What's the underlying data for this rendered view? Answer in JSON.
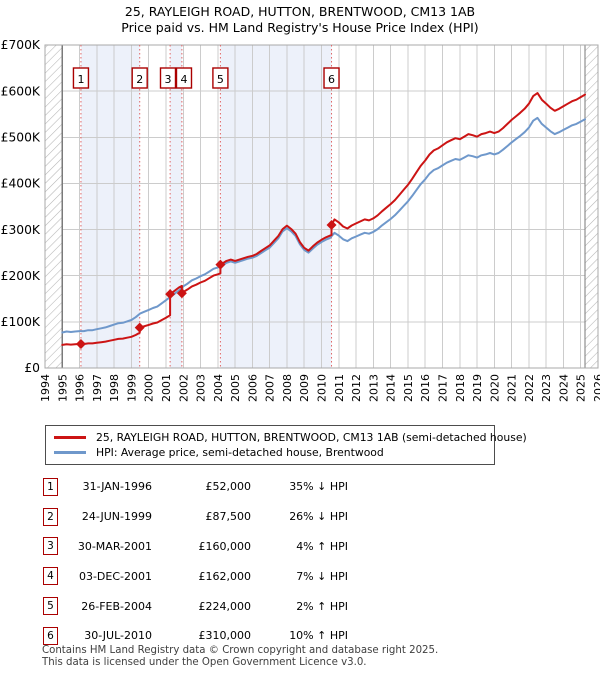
{
  "title": "25, RAYLEIGH ROAD, HUTTON, BRENTWOOD, CM13 1AB",
  "subtitle": "Price paid vs. HM Land Registry's House Price Index (HPI)",
  "legend": [
    {
      "label": "25, RAYLEIGH ROAD, HUTTON, BRENTWOOD, CM13 1AB (semi-detached house)",
      "color": "#cc1414"
    },
    {
      "label": "HPI: Average price, semi-detached house, Brentwood",
      "color": "#6f98cb"
    }
  ],
  "sales": [
    {
      "n": 1,
      "date": "31-JAN-1996",
      "price": "£52,000",
      "hpi_diff": "35% ↓ HPI",
      "year": 1996.08,
      "value_k": 52
    },
    {
      "n": 2,
      "date": "24-JUN-1999",
      "price": "£87,500",
      "hpi_diff": "26% ↓ HPI",
      "year": 1999.48,
      "value_k": 87.5
    },
    {
      "n": 3,
      "date": "30-MAR-2001",
      "price": "£160,000",
      "hpi_diff": "4% ↑ HPI",
      "year": 2001.24,
      "value_k": 160
    },
    {
      "n": 4,
      "date": "03-DEC-2001",
      "price": "£162,000",
      "hpi_diff": "7% ↓ HPI",
      "year": 2001.92,
      "value_k": 162
    },
    {
      "n": 5,
      "date": "26-FEB-2004",
      "price": "£224,000",
      "hpi_diff": "2% ↑ HPI",
      "year": 2004.15,
      "value_k": 224
    },
    {
      "n": 6,
      "date": "30-JUL-2010",
      "price": "£310,000",
      "hpi_diff": "10% ↑ HPI",
      "year": 2010.58,
      "value_k": 310
    }
  ],
  "footer": {
    "line1": "Contains HM Land Registry data © Crown copyright and database right 2025.",
    "line2": "This data is licensed under the Open Government Licence v3.0."
  },
  "colors": {
    "price_line": "#cc1414",
    "hpi_line": "#6f98cb",
    "sale_dash": "#e06666",
    "marker_box_border": "#aa0000",
    "grid": "#cccccc",
    "plot_border": "#a8a8a8",
    "hatch_line": "#b5b5b5",
    "hatch_edge": "#7a7a7a",
    "ownership_band": "#edf1fa"
  },
  "chart_data": {
    "type": "line",
    "title": "Price paid vs. HM Land Registry's House Price Index (HPI)",
    "xlabel": "",
    "ylabel": "",
    "units": "GBP thousands",
    "xlim_year": [
      1994,
      2026
    ],
    "ylim_k": [
      0,
      700
    ],
    "grid": true,
    "legend_position": "below",
    "x_tick_labels": [
      "1994",
      "1995",
      "1996",
      "1997",
      "1998",
      "1999",
      "2000",
      "2001",
      "2002",
      "2003",
      "2004",
      "2005",
      "2006",
      "2007",
      "2008",
      "2009",
      "2010",
      "2011",
      "2012",
      "2013",
      "2014",
      "2015",
      "2016",
      "2017",
      "2018",
      "2019",
      "2020",
      "2021",
      "2022",
      "2023",
      "2024",
      "2025",
      "2026"
    ],
    "y_ticks": [
      {
        "v": 0,
        "label": "£0"
      },
      {
        "v": 100,
        "label": "£100K"
      },
      {
        "v": 200,
        "label": "£200K"
      },
      {
        "v": 300,
        "label": "£300K"
      },
      {
        "v": 400,
        "label": "£400K"
      },
      {
        "v": 500,
        "label": "£500K"
      },
      {
        "v": 600,
        "label": "£600K"
      },
      {
        "v": 700,
        "label": "£700K"
      }
    ],
    "ownership_bands": [
      [
        1996.08,
        1999.48
      ],
      [
        2001.24,
        2001.92
      ],
      [
        2004.15,
        2010.58
      ]
    ],
    "hatched_no_data": [
      [
        1994,
        1995
      ],
      [
        2025.25,
        2026
      ]
    ],
    "series": [
      {
        "name": "HPI: Average price, semi-detached house, Brentwood",
        "color": "#6f98cb",
        "points": [
          [
            1995,
            77
          ],
          [
            1995.25,
            79
          ],
          [
            1995.5,
            78
          ],
          [
            1995.75,
            79
          ],
          [
            1996,
            80
          ],
          [
            1996.25,
            80
          ],
          [
            1996.5,
            82
          ],
          [
            1996.75,
            82
          ],
          [
            1997,
            84
          ],
          [
            1997.25,
            86
          ],
          [
            1997.5,
            88
          ],
          [
            1997.75,
            91
          ],
          [
            1998,
            94
          ],
          [
            1998.25,
            97
          ],
          [
            1998.5,
            98
          ],
          [
            1998.75,
            101
          ],
          [
            1999,
            104
          ],
          [
            1999.25,
            110
          ],
          [
            1999.5,
            118
          ],
          [
            1999.75,
            122
          ],
          [
            2000,
            126
          ],
          [
            2000.25,
            130
          ],
          [
            2000.5,
            133
          ],
          [
            2000.75,
            140
          ],
          [
            2001,
            147
          ],
          [
            2001.25,
            154
          ],
          [
            2001.5,
            161
          ],
          [
            2001.75,
            168
          ],
          [
            2002,
            177
          ],
          [
            2002.25,
            183
          ],
          [
            2002.5,
            190
          ],
          [
            2002.75,
            194
          ],
          [
            2003,
            199
          ],
          [
            2003.25,
            203
          ],
          [
            2003.5,
            209
          ],
          [
            2003.75,
            215
          ],
          [
            2004,
            218
          ],
          [
            2004.25,
            222
          ],
          [
            2004.5,
            228
          ],
          [
            2004.75,
            231
          ],
          [
            2005,
            228
          ],
          [
            2005.25,
            231
          ],
          [
            2005.5,
            234
          ],
          [
            2005.75,
            237
          ],
          [
            2006,
            239
          ],
          [
            2006.25,
            243
          ],
          [
            2006.5,
            249
          ],
          [
            2006.75,
            255
          ],
          [
            2007,
            261
          ],
          [
            2007.25,
            271
          ],
          [
            2007.5,
            281
          ],
          [
            2007.75,
            296
          ],
          [
            2008,
            303
          ],
          [
            2008.25,
            296
          ],
          [
            2008.5,
            286
          ],
          [
            2008.75,
            268
          ],
          [
            2009,
            256
          ],
          [
            2009.25,
            250
          ],
          [
            2009.5,
            259
          ],
          [
            2009.75,
            267
          ],
          [
            2010,
            273
          ],
          [
            2010.25,
            278
          ],
          [
            2010.5,
            282
          ],
          [
            2010.75,
            293
          ],
          [
            2011,
            287
          ],
          [
            2011.25,
            279
          ],
          [
            2011.5,
            275
          ],
          [
            2011.75,
            281
          ],
          [
            2012,
            285
          ],
          [
            2012.25,
            289
          ],
          [
            2012.5,
            293
          ],
          [
            2012.75,
            291
          ],
          [
            2013,
            295
          ],
          [
            2013.25,
            301
          ],
          [
            2013.5,
            309
          ],
          [
            2013.75,
            316
          ],
          [
            2014,
            323
          ],
          [
            2014.25,
            331
          ],
          [
            2014.5,
            341
          ],
          [
            2014.75,
            351
          ],
          [
            2015,
            361
          ],
          [
            2015.25,
            373
          ],
          [
            2015.5,
            386
          ],
          [
            2015.75,
            399
          ],
          [
            2016,
            409
          ],
          [
            2016.25,
            421
          ],
          [
            2016.5,
            429
          ],
          [
            2016.75,
            433
          ],
          [
            2017,
            439
          ],
          [
            2017.25,
            445
          ],
          [
            2017.5,
            449
          ],
          [
            2017.75,
            453
          ],
          [
            2018,
            451
          ],
          [
            2018.25,
            456
          ],
          [
            2018.5,
            461
          ],
          [
            2018.75,
            459
          ],
          [
            2019,
            456
          ],
          [
            2019.25,
            461
          ],
          [
            2019.5,
            463
          ],
          [
            2019.75,
            466
          ],
          [
            2020,
            463
          ],
          [
            2020.25,
            466
          ],
          [
            2020.5,
            473
          ],
          [
            2020.75,
            481
          ],
          [
            2021,
            489
          ],
          [
            2021.25,
            496
          ],
          [
            2021.5,
            503
          ],
          [
            2021.75,
            511
          ],
          [
            2022,
            521
          ],
          [
            2022.25,
            536
          ],
          [
            2022.5,
            542
          ],
          [
            2022.75,
            529
          ],
          [
            2023,
            521
          ],
          [
            2023.25,
            513
          ],
          [
            2023.5,
            507
          ],
          [
            2023.75,
            511
          ],
          [
            2024,
            516
          ],
          [
            2024.25,
            521
          ],
          [
            2024.5,
            526
          ],
          [
            2024.75,
            529
          ],
          [
            2025,
            534
          ],
          [
            2025.25,
            539
          ]
        ]
      },
      {
        "name": "25, RAYLEIGH ROAD, HUTTON, BRENTWOOD, CM13 1AB (semi-detached house)",
        "color": "#cc1414",
        "points": [
          [
            1995,
            50
          ],
          [
            1995.25,
            51.4
          ],
          [
            1995.5,
            50.7
          ],
          [
            1995.75,
            51.4
          ],
          [
            1996,
            52
          ],
          [
            1996.08,
            52
          ],
          [
            1996.25,
            52
          ],
          [
            1996.5,
            53.3
          ],
          [
            1996.75,
            53.3
          ],
          [
            1997,
            54.6
          ],
          [
            1997.25,
            55.9
          ],
          [
            1997.5,
            57.2
          ],
          [
            1997.75,
            59.2
          ],
          [
            1998,
            61.1
          ],
          [
            1998.25,
            63.1
          ],
          [
            1998.5,
            63.7
          ],
          [
            1998.75,
            65.7
          ],
          [
            1999,
            67.6
          ],
          [
            1999.25,
            71.5
          ],
          [
            1999.48,
            76.5
          ],
          [
            1999.48,
            87.5
          ],
          [
            1999.75,
            90.5
          ],
          [
            2000,
            93.4
          ],
          [
            2000.25,
            96.4
          ],
          [
            2000.5,
            98.6
          ],
          [
            2000.75,
            103.8
          ],
          [
            2001,
            109
          ],
          [
            2001.24,
            114.2
          ],
          [
            2001.24,
            160
          ],
          [
            2001.5,
            167.3
          ],
          [
            2001.75,
            174.5
          ],
          [
            2001.92,
            178
          ],
          [
            2001.92,
            162
          ],
          [
            2002,
            164.8
          ],
          [
            2002.25,
            170.4
          ],
          [
            2002.5,
            176.9
          ],
          [
            2002.75,
            180.6
          ],
          [
            2003,
            185.3
          ],
          [
            2003.25,
            189
          ],
          [
            2003.5,
            194.6
          ],
          [
            2003.75,
            200.2
          ],
          [
            2004,
            203
          ],
          [
            2004.15,
            205
          ],
          [
            2004.15,
            224
          ],
          [
            2004.25,
            226
          ],
          [
            2004.5,
            232
          ],
          [
            2004.75,
            235
          ],
          [
            2005,
            232
          ],
          [
            2005.25,
            235
          ],
          [
            2005.5,
            238
          ],
          [
            2005.75,
            241
          ],
          [
            2006,
            243
          ],
          [
            2006.25,
            247
          ],
          [
            2006.5,
            253.5
          ],
          [
            2006.75,
            259.6
          ],
          [
            2007,
            265.7
          ],
          [
            2007.25,
            275.9
          ],
          [
            2007.5,
            286
          ],
          [
            2007.75,
            301
          ],
          [
            2008,
            308.5
          ],
          [
            2008.25,
            301
          ],
          [
            2008.5,
            291
          ],
          [
            2008.75,
            272.8
          ],
          [
            2009,
            260.6
          ],
          [
            2009.25,
            254.5
          ],
          [
            2009.5,
            263.7
          ],
          [
            2009.75,
            271.8
          ],
          [
            2010,
            277.9
          ],
          [
            2010.25,
            283
          ],
          [
            2010.5,
            287
          ],
          [
            2010.58,
            288
          ],
          [
            2010.58,
            310
          ],
          [
            2010.75,
            322
          ],
          [
            2011,
            315.5
          ],
          [
            2011.25,
            306.7
          ],
          [
            2011.5,
            302.3
          ],
          [
            2011.75,
            308.9
          ],
          [
            2012,
            313.3
          ],
          [
            2012.25,
            317.7
          ],
          [
            2012.5,
            322.1
          ],
          [
            2012.75,
            319.9
          ],
          [
            2013,
            324.3
          ],
          [
            2013.25,
            330.9
          ],
          [
            2013.5,
            339.7
          ],
          [
            2013.75,
            347.4
          ],
          [
            2014,
            355.1
          ],
          [
            2014.25,
            363.9
          ],
          [
            2014.5,
            374.9
          ],
          [
            2014.75,
            385.9
          ],
          [
            2015,
            396.8
          ],
          [
            2015.25,
            410
          ],
          [
            2015.5,
            424.3
          ],
          [
            2015.75,
            438.6
          ],
          [
            2016,
            449.6
          ],
          [
            2016.25,
            462.8
          ],
          [
            2016.5,
            471.6
          ],
          [
            2016.75,
            476
          ],
          [
            2017,
            482.6
          ],
          [
            2017.25,
            489.2
          ],
          [
            2017.5,
            493.6
          ],
          [
            2017.75,
            498
          ],
          [
            2018,
            495.8
          ],
          [
            2018.25,
            501.3
          ],
          [
            2018.5,
            506.8
          ],
          [
            2018.75,
            504.6
          ],
          [
            2019,
            501.3
          ],
          [
            2019.25,
            506.8
          ],
          [
            2019.5,
            509
          ],
          [
            2019.75,
            512.3
          ],
          [
            2020,
            509
          ],
          [
            2020.25,
            512.3
          ],
          [
            2020.5,
            520
          ],
          [
            2020.75,
            528.8
          ],
          [
            2021,
            537.6
          ],
          [
            2021.25,
            545.3
          ],
          [
            2021.5,
            553
          ],
          [
            2021.75,
            561.8
          ],
          [
            2022,
            572.7
          ],
          [
            2022.25,
            589.2
          ],
          [
            2022.5,
            595.8
          ],
          [
            2022.75,
            581.5
          ],
          [
            2023,
            572.7
          ],
          [
            2023.25,
            563.9
          ],
          [
            2023.5,
            557.3
          ],
          [
            2023.75,
            561.8
          ],
          [
            2024,
            567.2
          ],
          [
            2024.25,
            572.7
          ],
          [
            2024.5,
            578.2
          ],
          [
            2024.75,
            581.5
          ],
          [
            2025,
            587
          ],
          [
            2025.25,
            592.5
          ]
        ]
      }
    ],
    "sale_markers": [
      {
        "n": 1,
        "year": 1996.08,
        "value_k": 52
      },
      {
        "n": 2,
        "year": 1999.48,
        "value_k": 87.5
      },
      {
        "n": 3,
        "year": 2001.24,
        "value_k": 160
      },
      {
        "n": 4,
        "year": 2001.92,
        "value_k": 162
      },
      {
        "n": 5,
        "year": 2004.15,
        "value_k": 224
      },
      {
        "n": 6,
        "year": 2010.58,
        "value_k": 310
      }
    ]
  }
}
